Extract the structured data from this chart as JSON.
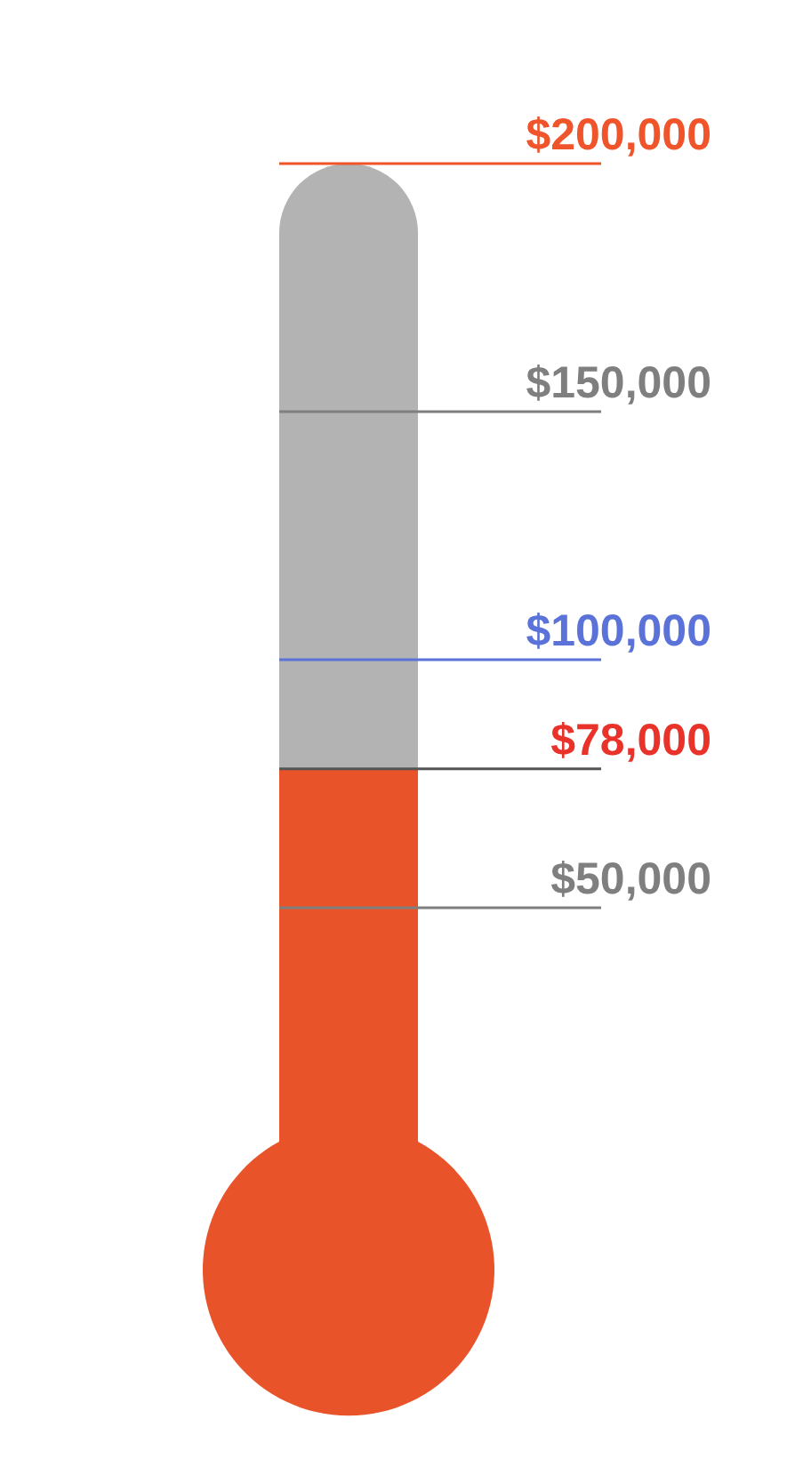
{
  "chart_data": {
    "type": "bar",
    "categories": [
      null
    ],
    "values": [
      78000
    ],
    "color": "#e9532a",
    "value_labels": [
      "$78,000"
    ],
    "ylim": [
      0,
      200000
    ],
    "ref_lines": [
      {
        "axis": "y",
        "value": 200000,
        "label": "$200,000",
        "color": "#f0542a"
      },
      {
        "axis": "y",
        "value": 150000,
        "label": "$150,000",
        "color": "#7f7f7f"
      },
      {
        "axis": "y",
        "value": 100000,
        "label": "$100,000",
        "color": "#5b73d9"
      },
      {
        "axis": "y",
        "value": 50000,
        "label": "$50,000",
        "color": "#7f7f7f"
      }
    ]
  }
}
